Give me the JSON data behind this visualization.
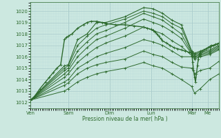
{
  "bg_color": "#cce8e0",
  "plot_bg_color": "#cce8e0",
  "line_color": "#2d6a2d",
  "grid_major_color": "#aacccc",
  "grid_minor_color": "#bbdddd",
  "xlabel": "Pression niveau de la mer( hPa )",
  "ylim": [
    1011.5,
    1020.8
  ],
  "yticks": [
    1012,
    1013,
    1014,
    1015,
    1016,
    1017,
    1018,
    1019,
    1020
  ],
  "day_labels": [
    "Ven",
    "Sam",
    "Dim",
    "Lun",
    "Mar",
    "Me"
  ],
  "day_positions": [
    0,
    0.2,
    0.42,
    0.64,
    0.855,
    0.94
  ],
  "xlim": [
    0,
    1.0
  ],
  "series": [
    {
      "points": [
        [
          0,
          1012.2
        ],
        [
          0.18,
          1015.2
        ],
        [
          0.2,
          1015.3
        ],
        [
          0.25,
          1017.5
        ],
        [
          0.3,
          1018.0
        ],
        [
          0.35,
          1019.0
        ],
        [
          0.4,
          1019.0
        ],
        [
          0.5,
          1019.5
        ],
        [
          0.6,
          1020.3
        ],
        [
          0.65,
          1020.2
        ],
        [
          0.7,
          1019.8
        ],
        [
          0.75,
          1019.2
        ],
        [
          0.8,
          1018.8
        ],
        [
          0.855,
          1016.5
        ],
        [
          0.87,
          1016.3
        ],
        [
          0.9,
          1016.5
        ],
        [
          0.95,
          1016.8
        ],
        [
          1.0,
          1017.2
        ]
      ],
      "lw": 0.8
    },
    {
      "points": [
        [
          0,
          1012.2
        ],
        [
          0.18,
          1015.0
        ],
        [
          0.2,
          1015.2
        ],
        [
          0.25,
          1017.0
        ],
        [
          0.3,
          1017.8
        ],
        [
          0.35,
          1018.5
        ],
        [
          0.4,
          1018.8
        ],
        [
          0.5,
          1019.3
        ],
        [
          0.6,
          1020.0
        ],
        [
          0.65,
          1019.8
        ],
        [
          0.7,
          1019.5
        ],
        [
          0.75,
          1018.9
        ],
        [
          0.8,
          1018.5
        ],
        [
          0.855,
          1016.4
        ],
        [
          0.87,
          1016.2
        ],
        [
          0.9,
          1016.4
        ],
        [
          0.95,
          1016.6
        ],
        [
          1.0,
          1017.0
        ]
      ],
      "lw": 0.7
    },
    {
      "points": [
        [
          0,
          1012.2
        ],
        [
          0.18,
          1014.8
        ],
        [
          0.2,
          1015.0
        ],
        [
          0.25,
          1016.5
        ],
        [
          0.3,
          1017.3
        ],
        [
          0.35,
          1018.0
        ],
        [
          0.4,
          1018.3
        ],
        [
          0.5,
          1019.0
        ],
        [
          0.6,
          1019.8
        ],
        [
          0.65,
          1019.5
        ],
        [
          0.7,
          1019.2
        ],
        [
          0.75,
          1018.6
        ],
        [
          0.8,
          1018.0
        ],
        [
          0.855,
          1016.3
        ],
        [
          0.87,
          1016.1
        ],
        [
          0.9,
          1016.3
        ],
        [
          0.95,
          1016.5
        ],
        [
          1.0,
          1016.9
        ]
      ],
      "lw": 0.7
    },
    {
      "points": [
        [
          0,
          1012.2
        ],
        [
          0.18,
          1014.5
        ],
        [
          0.2,
          1014.8
        ],
        [
          0.25,
          1016.0
        ],
        [
          0.3,
          1016.8
        ],
        [
          0.35,
          1017.5
        ],
        [
          0.4,
          1017.8
        ],
        [
          0.5,
          1018.5
        ],
        [
          0.6,
          1019.3
        ],
        [
          0.65,
          1019.0
        ],
        [
          0.7,
          1018.7
        ],
        [
          0.75,
          1018.2
        ],
        [
          0.8,
          1017.6
        ],
        [
          0.855,
          1016.2
        ],
        [
          0.87,
          1016.0
        ],
        [
          0.9,
          1016.2
        ],
        [
          0.95,
          1016.4
        ],
        [
          1.0,
          1016.8
        ]
      ],
      "lw": 0.7
    },
    {
      "points": [
        [
          0,
          1012.2
        ],
        [
          0.18,
          1014.2
        ],
        [
          0.2,
          1014.5
        ],
        [
          0.25,
          1015.5
        ],
        [
          0.3,
          1016.2
        ],
        [
          0.35,
          1016.8
        ],
        [
          0.4,
          1017.2
        ],
        [
          0.5,
          1017.8
        ],
        [
          0.6,
          1018.6
        ],
        [
          0.65,
          1018.3
        ],
        [
          0.7,
          1018.0
        ],
        [
          0.75,
          1017.4
        ],
        [
          0.8,
          1016.9
        ],
        [
          0.855,
          1016.1
        ],
        [
          0.87,
          1015.9
        ],
        [
          0.9,
          1016.1
        ],
        [
          0.95,
          1016.3
        ],
        [
          1.0,
          1016.7
        ]
      ],
      "lw": 0.7
    },
    {
      "points": [
        [
          0,
          1012.2
        ],
        [
          0.18,
          1013.8
        ],
        [
          0.2,
          1014.0
        ],
        [
          0.25,
          1015.0
        ],
        [
          0.3,
          1015.5
        ],
        [
          0.35,
          1016.0
        ],
        [
          0.4,
          1016.3
        ],
        [
          0.5,
          1016.8
        ],
        [
          0.6,
          1017.5
        ],
        [
          0.65,
          1017.3
        ],
        [
          0.7,
          1017.0
        ],
        [
          0.75,
          1016.5
        ],
        [
          0.8,
          1016.0
        ],
        [
          0.855,
          1016.0
        ],
        [
          0.87,
          1015.8
        ],
        [
          0.9,
          1016.0
        ],
        [
          0.95,
          1016.2
        ],
        [
          1.0,
          1016.6
        ]
      ],
      "lw": 0.7
    },
    {
      "points": [
        [
          0,
          1012.2
        ],
        [
          0.18,
          1013.5
        ],
        [
          0.2,
          1013.7
        ],
        [
          0.25,
          1014.5
        ],
        [
          0.3,
          1015.0
        ],
        [
          0.35,
          1015.3
        ],
        [
          0.4,
          1015.5
        ],
        [
          0.5,
          1015.8
        ],
        [
          0.6,
          1016.5
        ],
        [
          0.65,
          1016.2
        ],
        [
          0.7,
          1016.0
        ],
        [
          0.75,
          1015.5
        ],
        [
          0.8,
          1015.1
        ],
        [
          0.855,
          1015.0
        ],
        [
          0.87,
          1014.5
        ],
        [
          0.9,
          1014.8
        ],
        [
          0.95,
          1015.0
        ],
        [
          1.0,
          1015.6
        ]
      ],
      "lw": 0.7
    },
    {
      "points": [
        [
          0,
          1012.2
        ],
        [
          0.18,
          1013.0
        ],
        [
          0.2,
          1013.2
        ],
        [
          0.25,
          1013.8
        ],
        [
          0.3,
          1014.2
        ],
        [
          0.35,
          1014.5
        ],
        [
          0.4,
          1014.7
        ],
        [
          0.5,
          1015.0
        ],
        [
          0.6,
          1015.5
        ],
        [
          0.65,
          1015.2
        ],
        [
          0.7,
          1015.0
        ],
        [
          0.75,
          1014.5
        ],
        [
          0.8,
          1014.0
        ],
        [
          0.855,
          1013.4
        ],
        [
          0.87,
          1012.8
        ],
        [
          0.9,
          1013.2
        ],
        [
          0.95,
          1014.0
        ],
        [
          1.0,
          1014.5
        ]
      ],
      "lw": 0.7
    },
    {
      "points": [
        [
          0,
          1012.2
        ],
        [
          0.02,
          1012.5
        ],
        [
          0.05,
          1013.2
        ],
        [
          0.08,
          1013.8
        ],
        [
          0.1,
          1014.2
        ],
        [
          0.12,
          1014.6
        ],
        [
          0.14,
          1015.0
        ],
        [
          0.16,
          1015.3
        ],
        [
          0.18,
          1017.5
        ],
        [
          0.19,
          1017.7
        ],
        [
          0.2,
          1017.8
        ],
        [
          0.22,
          1018.0
        ],
        [
          0.25,
          1018.5
        ],
        [
          0.28,
          1018.8
        ],
        [
          0.3,
          1019.0
        ],
        [
          0.32,
          1019.1
        ],
        [
          0.35,
          1019.1
        ],
        [
          0.38,
          1019.0
        ],
        [
          0.4,
          1018.9
        ],
        [
          0.45,
          1018.8
        ],
        [
          0.5,
          1018.8
        ],
        [
          0.55,
          1018.7
        ],
        [
          0.6,
          1018.6
        ],
        [
          0.62,
          1018.5
        ],
        [
          0.64,
          1018.4
        ],
        [
          0.65,
          1018.3
        ],
        [
          0.66,
          1018.2
        ],
        [
          0.67,
          1018.0
        ],
        [
          0.68,
          1017.8
        ],
        [
          0.69,
          1017.6
        ],
        [
          0.7,
          1017.4
        ],
        [
          0.72,
          1017.2
        ],
        [
          0.74,
          1017.0
        ],
        [
          0.76,
          1016.8
        ],
        [
          0.78,
          1016.7
        ],
        [
          0.8,
          1016.6
        ],
        [
          0.82,
          1016.5
        ],
        [
          0.84,
          1016.4
        ],
        [
          0.855,
          1016.3
        ],
        [
          0.86,
          1015.5
        ],
        [
          0.865,
          1014.8
        ],
        [
          0.87,
          1014.2
        ],
        [
          0.875,
          1013.8
        ],
        [
          0.88,
          1014.5
        ],
        [
          0.885,
          1015.2
        ],
        [
          0.89,
          1015.8
        ],
        [
          0.895,
          1016.2
        ],
        [
          0.9,
          1016.4
        ],
        [
          0.91,
          1016.5
        ],
        [
          0.92,
          1016.6
        ],
        [
          0.93,
          1016.7
        ],
        [
          0.94,
          1016.8
        ],
        [
          0.95,
          1016.9
        ],
        [
          0.96,
          1017.0
        ],
        [
          0.97,
          1017.0
        ],
        [
          0.98,
          1017.1
        ],
        [
          0.99,
          1017.1
        ],
        [
          1.0,
          1017.2
        ]
      ],
      "lw": 1.0
    }
  ]
}
